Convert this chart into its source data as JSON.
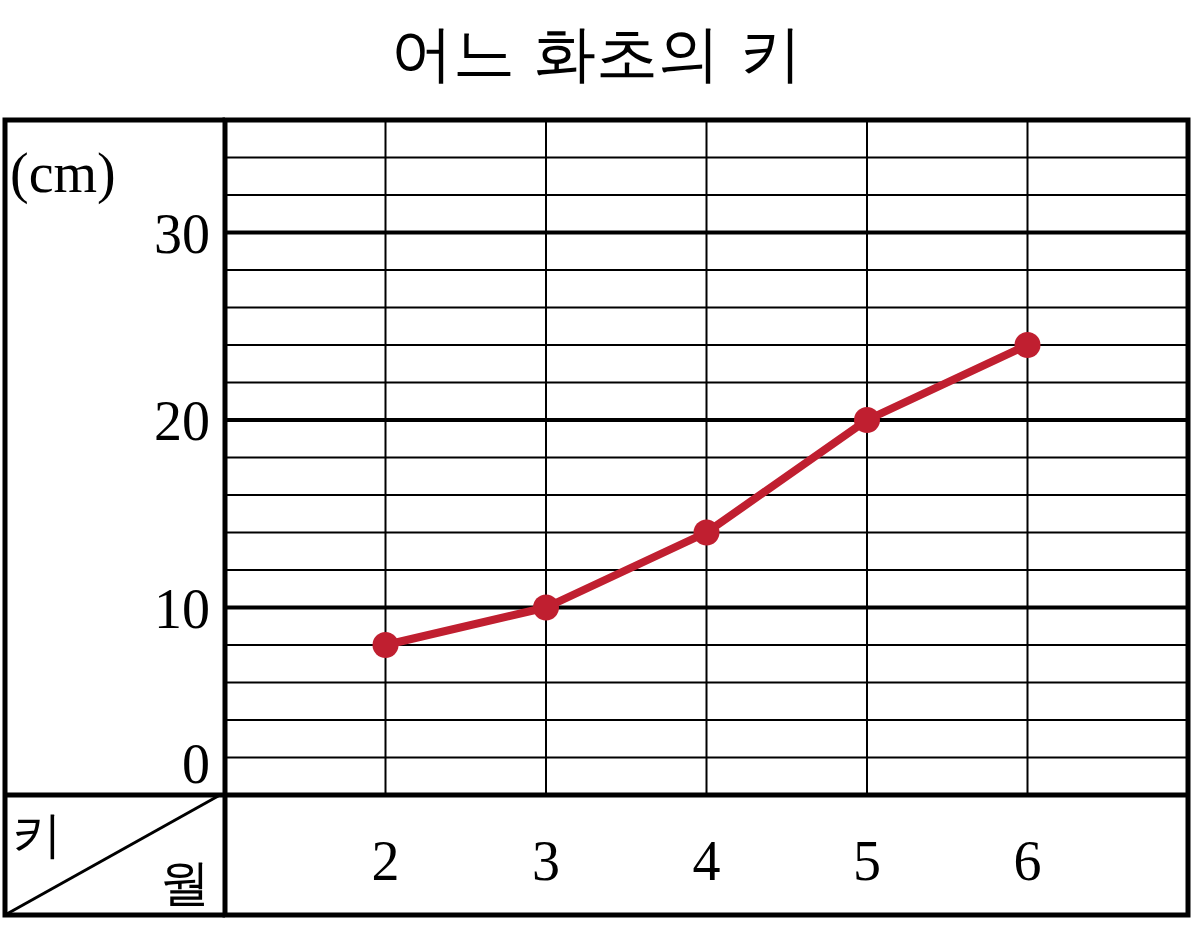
{
  "chart_data": {
    "type": "line",
    "title": "어느 화초의 키",
    "xlabel": "월",
    "ylabel": "(cm)",
    "annotations": [
      "키"
    ],
    "x": [
      2,
      3,
      4,
      5,
      6
    ],
    "xlim": [
      1,
      7
    ],
    "xticks": [
      2,
      3,
      4,
      5,
      6
    ],
    "ylim": [
      0,
      36
    ],
    "yticks": [
      0,
      {
        "value": 2,
        "label": null
      },
      {
        "value": 4,
        "label": null
      },
      {
        "value": 6,
        "label": null
      },
      {
        "value": 8,
        "label": null
      },
      10,
      {
        "value": 12,
        "label": null
      },
      {
        "value": 14,
        "label": null
      },
      {
        "value": 16,
        "label": null
      },
      {
        "value": 18,
        "label": null
      },
      20,
      {
        "value": 22,
        "label": null
      },
      {
        "value": 24,
        "label": null
      },
      {
        "value": 26,
        "label": null
      },
      {
        "value": 28,
        "label": null
      },
      30,
      {
        "value": 32,
        "label": null
      },
      {
        "value": 34,
        "label": null
      }
    ],
    "grid": true,
    "marker": "circle",
    "line_style": "solid",
    "series": [
      {
        "color": "#c01f30",
        "values": [
          8,
          10,
          14,
          20,
          24
        ]
      }
    ]
  }
}
